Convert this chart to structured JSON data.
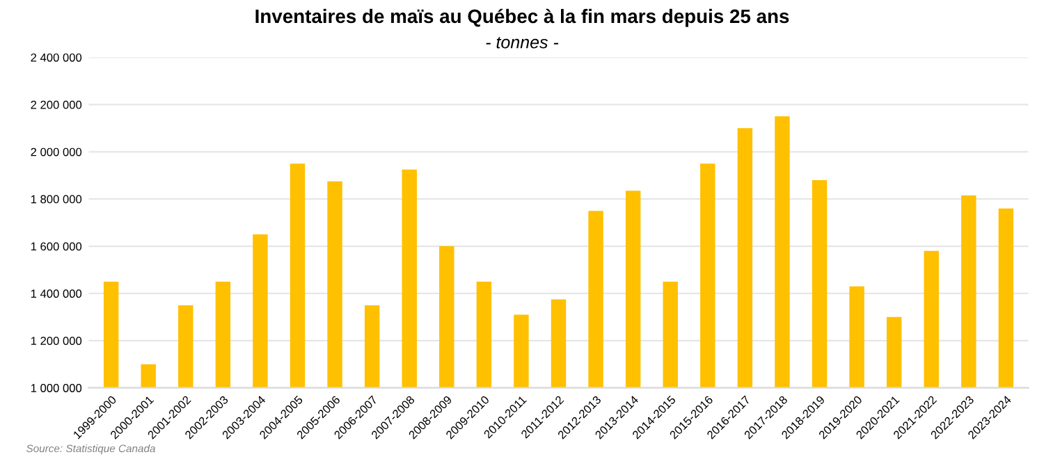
{
  "chart_data": {
    "type": "bar",
    "title": "Inventaires de maïs au Québec à la fin mars depuis 25 ans",
    "subtitle": "- tonnes -",
    "categories": [
      "1999-2000",
      "2000-2001",
      "2001-2002",
      "2002-2003",
      "2003-2004",
      "2004-2005",
      "2005-2006",
      "2006-2007",
      "2007-2008",
      "2008-2009",
      "2009-2010",
      "2010-2011",
      "2011-2012",
      "2012-2013",
      "2013-2014",
      "2014-2015",
      "2015-2016",
      "2016-2017",
      "2017-2018",
      "2018-2019",
      "2019-2020",
      "2020-2021",
      "2021-2022",
      "2022-2023",
      "2023-2024"
    ],
    "values": [
      1450000,
      1100000,
      1350000,
      1450000,
      1650000,
      1950000,
      1875000,
      1350000,
      1925000,
      1600000,
      1450000,
      1310000,
      1375000,
      1750000,
      1835000,
      1450000,
      1950000,
      2100000,
      2150000,
      1880000,
      1430000,
      1300000,
      1580000,
      1815000,
      1760000
    ],
    "color": "#ffc000",
    "ylim": [
      1000000,
      2400000
    ],
    "yticks": [
      {
        "value": 1000000,
        "label": "1 000 000"
      },
      {
        "value": 1200000,
        "label": "1 200 000"
      },
      {
        "value": 1400000,
        "label": "1 400 000"
      },
      {
        "value": 1600000,
        "label": "1 600 000"
      },
      {
        "value": 1800000,
        "label": "1 800 000"
      },
      {
        "value": 2000000,
        "label": "2 000 000"
      },
      {
        "value": 2200000,
        "label": "2 200 000"
      },
      {
        "value": 2400000,
        "label": "2 400 000"
      }
    ],
    "grid": "y",
    "legend": false,
    "annotations": [
      "Source: Statistique Canada"
    ]
  }
}
